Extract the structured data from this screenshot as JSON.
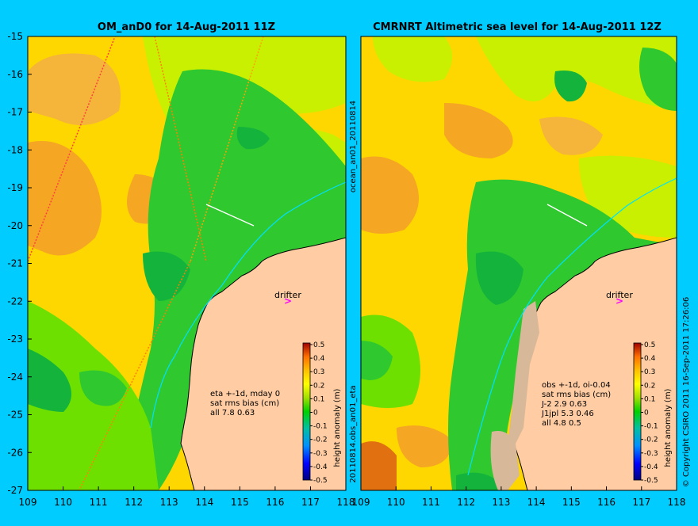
{
  "maps": [
    {
      "title": "OM_anD0 for 14-Aug-2011 11Z",
      "annotation_lines": [
        "eta +-1d, mday 0",
        "sat rms bias (cm)",
        "all 7.8 0.63"
      ],
      "drifter_label": "drifter"
    },
    {
      "title": "CMRNRT Altimetric sea level  for 14-Aug-2011 12Z",
      "annotation_lines": [
        "obs +-1d, oi-0.04",
        "sat rms bias (cm)",
        "J-2   2.9 0.63",
        "J1jpl 5.3 0.46",
        "all 4.8 0.5"
      ],
      "drifter_label": "drifter"
    }
  ],
  "x_ticks": [
    "109",
    "110",
    "111",
    "112",
    "113",
    "114",
    "115",
    "116",
    "117",
    "118"
  ],
  "y_ticks": [
    "-15",
    "-16",
    "-17",
    "-18",
    "-19",
    "-20",
    "-21",
    "-22",
    "-23",
    "-24",
    "-25",
    "-26",
    "-27"
  ],
  "colorbar": {
    "label": "height anomaly (m)",
    "ticks": [
      "0.5",
      "0.4",
      "0.3",
      "0.2",
      "0.1",
      "0",
      "-0.1",
      "-0.2",
      "-0.3",
      "-0.4",
      "-0.5"
    ],
    "colors": [
      "#000080",
      "#0000ff",
      "#0080ff",
      "#00c0c0",
      "#00c060",
      "#00e000",
      "#a0e000",
      "#ffff00",
      "#ffc000",
      "#ff8000",
      "#e04000",
      "#a00000"
    ]
  },
  "side_labels": {
    "middle_upper": "ocean_an01_20110814",
    "middle_lower": "20110814.obs_an01_eta",
    "right": "© Copyright CSIRO 2011   16-Sep-2011 17:26:06"
  },
  "palette": {
    "background": "#00ccff",
    "land": "#ffcca3",
    "high_orange": "#f5a623",
    "mid_yellow": "#ffd700",
    "yellow_green": "#c8f000",
    "green": "#2fc82f",
    "light_green": "#6ee000",
    "deep_green": "#14b43c"
  }
}
